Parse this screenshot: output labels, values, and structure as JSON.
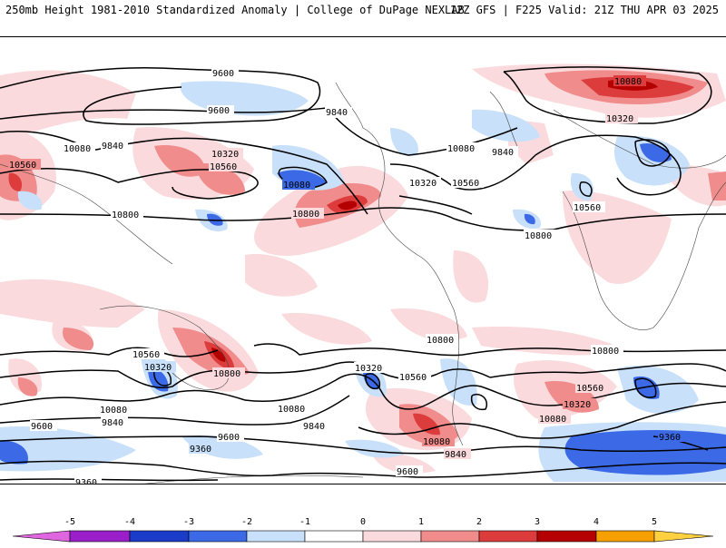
{
  "header": {
    "left": "250mb Height 1981-2010 Standardized Anomaly | College of DuPage NEXLAB",
    "right": "12Z GFS | F225 Valid: 21Z THU APR 03 2025"
  },
  "contour_labels": {
    "c9600": "9600",
    "c9840": "9840",
    "c10080": "10080",
    "c10320": "10320",
    "c10560": "10560",
    "c10800": "10800",
    "c9360": "9360"
  },
  "colorbar": {
    "ticks": [
      "-5",
      "-4",
      "-3",
      "-2",
      "-1",
      "0",
      "1",
      "2",
      "3",
      "4",
      "5"
    ],
    "bins": [
      {
        "color": "#e066e0"
      },
      {
        "color": "#9a1fc8"
      },
      {
        "color": "#1a3cc8"
      },
      {
        "color": "#3c6ae6"
      },
      {
        "color": "#c8e0fa"
      },
      {
        "color": "#ffffff"
      },
      {
        "color": "#fadadd"
      },
      {
        "color": "#f08c8c"
      },
      {
        "color": "#dc3c3c"
      },
      {
        "color": "#b40000"
      },
      {
        "color": "#f5a000"
      },
      {
        "color": "#ffd040"
      }
    ]
  },
  "colors": {
    "pos_light": "#fadadd",
    "pos_med": "#f08c8c",
    "pos_strong": "#dc3c3c",
    "pos_extreme": "#b40000",
    "neg_light": "#c8e0fa",
    "neg_med": "#3c6ae6"
  }
}
